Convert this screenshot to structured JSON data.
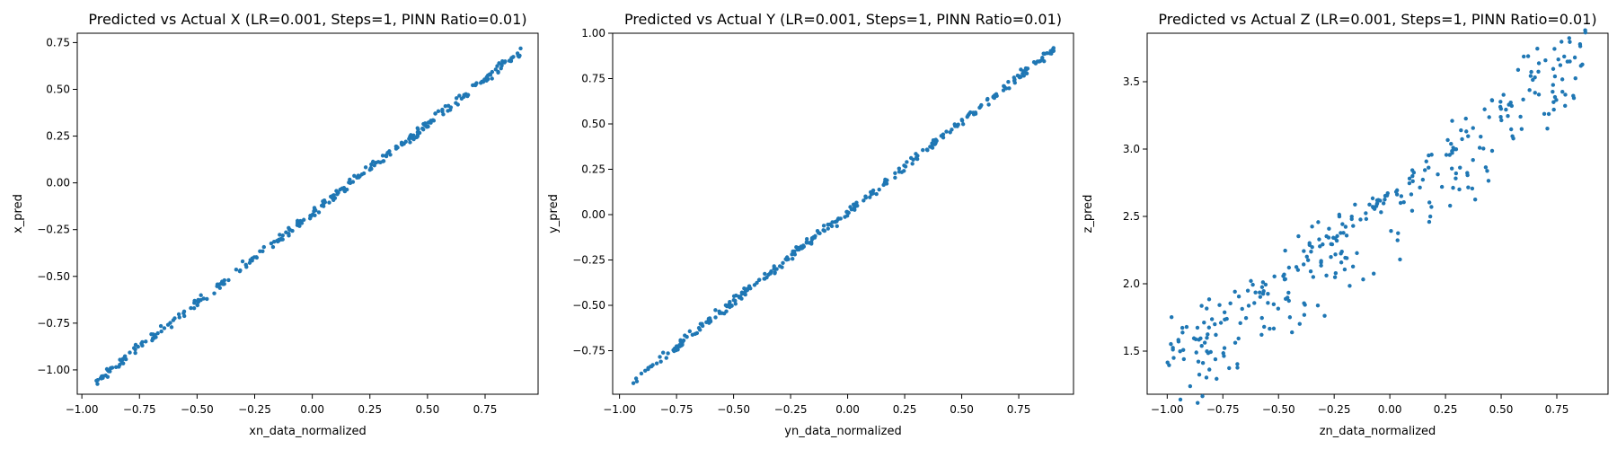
{
  "chart_data": [
    {
      "type": "scatter",
      "title": "Predicted vs Actual X (LR=0.001, Steps=1, PINN Ratio=0.01)",
      "xlabel": "xn_data_normalized",
      "ylabel": "x_pred",
      "xlim": [
        -1.02,
        0.98
      ],
      "ylim": [
        -1.13,
        0.8
      ],
      "xticks": [
        -1.0,
        -0.75,
        -0.5,
        -0.25,
        0.0,
        0.25,
        0.5,
        0.75
      ],
      "xtick_labels": [
        "−1.00",
        "−0.75",
        "−0.50",
        "−0.25",
        "0.00",
        "0.25",
        "0.50",
        "0.75"
      ],
      "yticks": [
        -1.0,
        -0.75,
        -0.5,
        -0.25,
        0.0,
        0.25,
        0.5,
        0.75
      ],
      "ytick_labels": [
        "−1.00",
        "−0.75",
        "−0.50",
        "−0.25",
        "0.00",
        "0.25",
        "0.50",
        "0.75"
      ],
      "x_range": [
        -0.94,
        0.91
      ],
      "fit": {
        "slope": 0.956,
        "intercept": -0.163
      },
      "noise": 0.012,
      "n_points": 300,
      "grid": false,
      "series": [
        {
          "color": "#1f77b4"
        }
      ]
    },
    {
      "type": "scatter",
      "title": "Predicted vs Actual Y (LR=0.001, Steps=1, PINN Ratio=0.01)",
      "xlabel": "yn_data_normalized",
      "ylabel": "y_pred",
      "xlim": [
        -1.03,
        0.99
      ],
      "ylim": [
        -0.99,
        1.0
      ],
      "xticks": [
        -1.0,
        -0.75,
        -0.5,
        -0.25,
        0.0,
        0.25,
        0.5,
        0.75
      ],
      "xtick_labels": [
        "−1.00",
        "−0.75",
        "−0.50",
        "−0.25",
        "0.00",
        "0.25",
        "0.50",
        "0.75"
      ],
      "yticks": [
        -0.75,
        -0.5,
        -0.25,
        0.0,
        0.25,
        0.5,
        0.75,
        1.0
      ],
      "ytick_labels": [
        "−0.75",
        "−0.50",
        "−0.25",
        "0.00",
        "0.25",
        "0.50",
        "0.75",
        "1.00"
      ],
      "x_range": [
        -0.95,
        0.91
      ],
      "fit": {
        "slope": 0.99,
        "intercept": 0.015
      },
      "noise": 0.012,
      "n_points": 300,
      "grid": false,
      "series": [
        {
          "color": "#1f77b4"
        }
      ]
    },
    {
      "type": "scatter",
      "title": "Predicted vs Actual Z (LR=0.001, Steps=1, PINN Ratio=0.01)",
      "xlabel": "zn_data_normalized",
      "ylabel": "z_pred",
      "xlim": [
        -1.09,
        0.98
      ],
      "ylim": [
        1.18,
        3.86
      ],
      "xticks": [
        -1.0,
        -0.75,
        -0.5,
        -0.25,
        0.0,
        0.25,
        0.5,
        0.75
      ],
      "xtick_labels": [
        "−1.00",
        "−0.75",
        "−0.50",
        "−0.25",
        "0.00",
        "0.25",
        "0.50",
        "0.75"
      ],
      "yticks": [
        1.5,
        2.0,
        2.5,
        3.0,
        3.5
      ],
      "ytick_labels": [
        "1.5",
        "2.0",
        "2.5",
        "3.0",
        "3.5"
      ],
      "x_range": [
        -1.0,
        0.88
      ],
      "fit": {
        "slope": 1.25,
        "intercept": 2.62
      },
      "noise": 0.17,
      "n_points": 320,
      "grid": false,
      "series": [
        {
          "color": "#1f77b4"
        }
      ]
    }
  ]
}
